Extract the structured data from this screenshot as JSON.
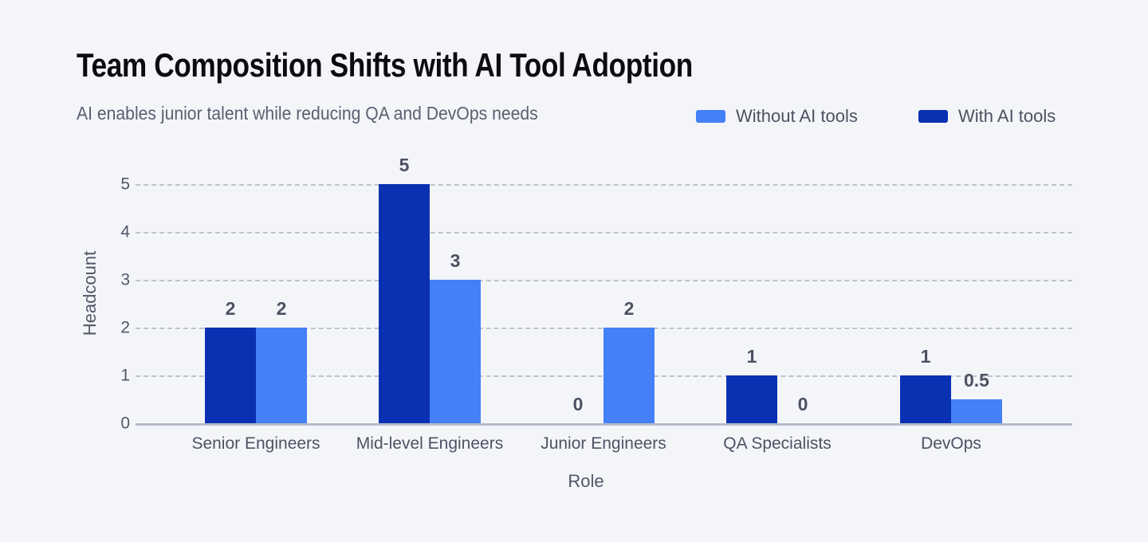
{
  "chart_data": {
    "type": "bar",
    "title": "Team Composition Shifts with AI Tool Adoption",
    "subtitle": "AI enables junior talent while reducing QA and DevOps needs",
    "xlabel": "Role",
    "ylabel": "Headcount",
    "ylim": [
      0,
      5
    ],
    "yticks": [
      0,
      1,
      2,
      3,
      4,
      5
    ],
    "grid": "horizontal-dashed",
    "legend_position": "top-right",
    "legend": [
      {
        "label": "Without AI tools",
        "color": "#4480f8"
      },
      {
        "label": "With AI tools",
        "color": "#0a31b2"
      }
    ],
    "categories": [
      "Senior Engineers",
      "Mid-level Engineers",
      "Junior Engineers",
      "QA Specialists",
      "DevOps"
    ],
    "series": [
      {
        "name": "With AI tools",
        "color": "#0a31b2",
        "values": [
          2,
          5,
          0,
          1,
          1
        ]
      },
      {
        "name": "Without AI tools",
        "color": "#4480f8",
        "values": [
          2,
          3,
          2,
          0,
          0.5
        ]
      }
    ],
    "value_labels_shown": true
  },
  "colors": {
    "background": "#f4f5f9",
    "gridline": "#bdc3d1",
    "baseline": "#b4bbc9",
    "title_text": "#0b0c10",
    "subtitle_text": "#5a6070",
    "axis_text": "#525868",
    "value_label_text": "#4c5263"
  }
}
